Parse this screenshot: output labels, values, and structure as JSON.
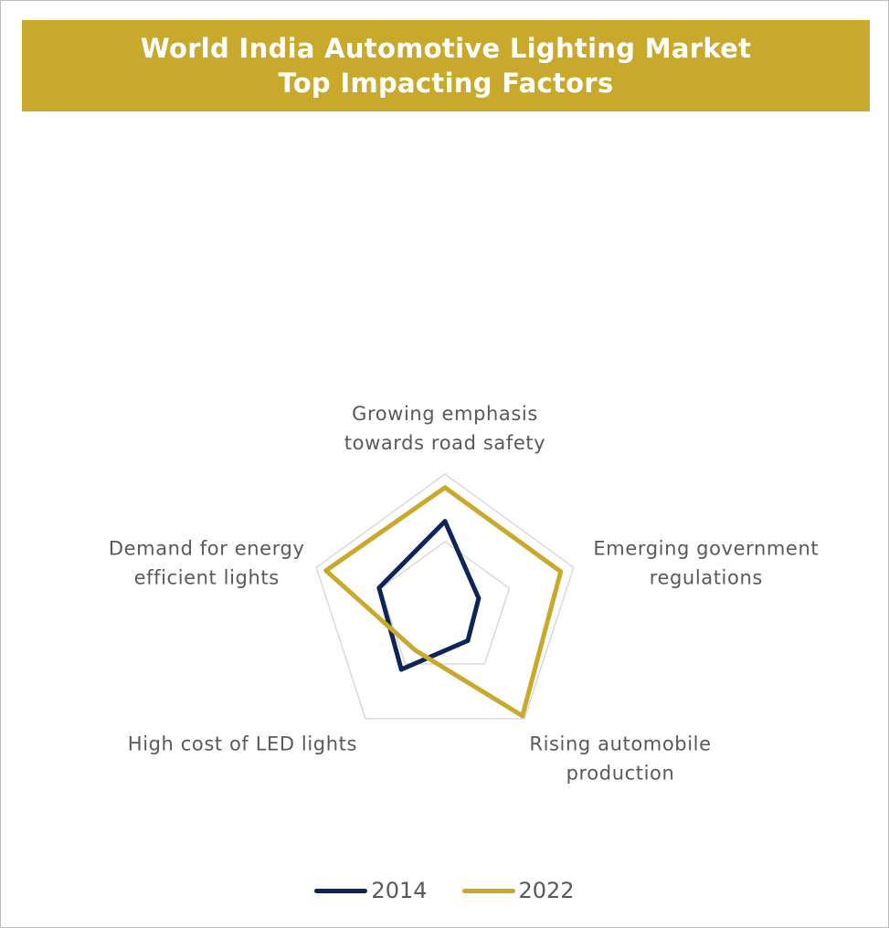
{
  "header": {
    "title_line1": "World India Automotive Lighting Market",
    "title_line2": "Top Impacting Factors",
    "background": "#c8a92c"
  },
  "chart_data": {
    "type": "radar",
    "title": "World India Automotive Lighting Market Top Impacting Factors",
    "axes": [
      "Growing emphasis towards road safety",
      "Emerging government regulations",
      "Rising automobile production",
      "High cost of LED lights",
      "Demand for energy efficient lights"
    ],
    "axis_label_lines": [
      [
        "Growing emphasis",
        "towards road safety"
      ],
      [
        "Emerging government",
        "regulations"
      ],
      [
        "Rising automobile",
        "production"
      ],
      [
        "High cost of LED lights"
      ],
      [
        "Demand for energy",
        "efficient lights"
      ]
    ],
    "range": [
      0,
      4
    ],
    "grid_levels": [
      2,
      4
    ],
    "grid": true,
    "series": [
      {
        "name": "2014",
        "color": "#0d2557",
        "values": [
          2.6,
          1.05,
          1.15,
          2.2,
          2.05
        ]
      },
      {
        "name": "2022",
        "color": "#c8a92c",
        "values": [
          3.6,
          3.6,
          3.9,
          1.5,
          3.7
        ]
      }
    ],
    "legend_position": "bottom"
  }
}
